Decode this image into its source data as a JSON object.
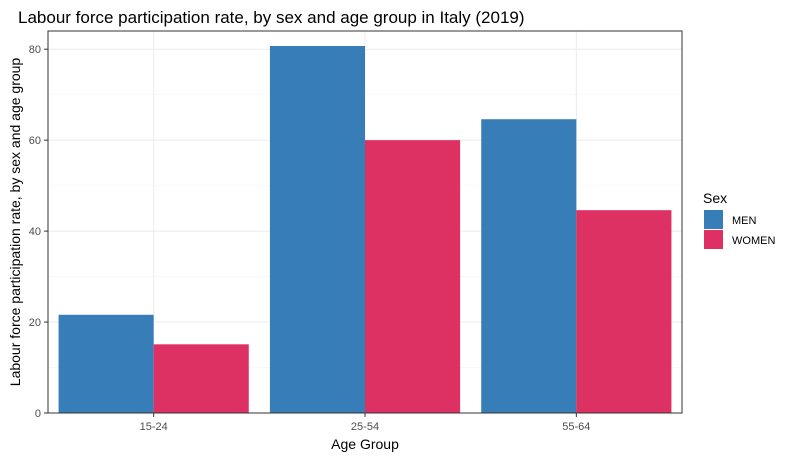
{
  "chart_data": {
    "type": "bar",
    "title": "Labour force participation rate, by sex and age group in Italy (2019)",
    "xlabel": "Age Group",
    "ylabel": "Labour force participation rate, by sex and age group",
    "categories": [
      "15-24",
      "25-54",
      "55-64"
    ],
    "series": [
      {
        "name": "MEN",
        "color": "#377eb8",
        "values": [
          21.6,
          80.7,
          64.6
        ]
      },
      {
        "name": "WOMEN",
        "color": "#de3163",
        "values": [
          15.1,
          60.0,
          44.6
        ]
      }
    ],
    "ylim": [
      0,
      84
    ],
    "yticks": [
      0,
      20,
      40,
      60,
      80
    ],
    "grid": true,
    "legend": {
      "title": "Sex",
      "position": "right"
    }
  }
}
